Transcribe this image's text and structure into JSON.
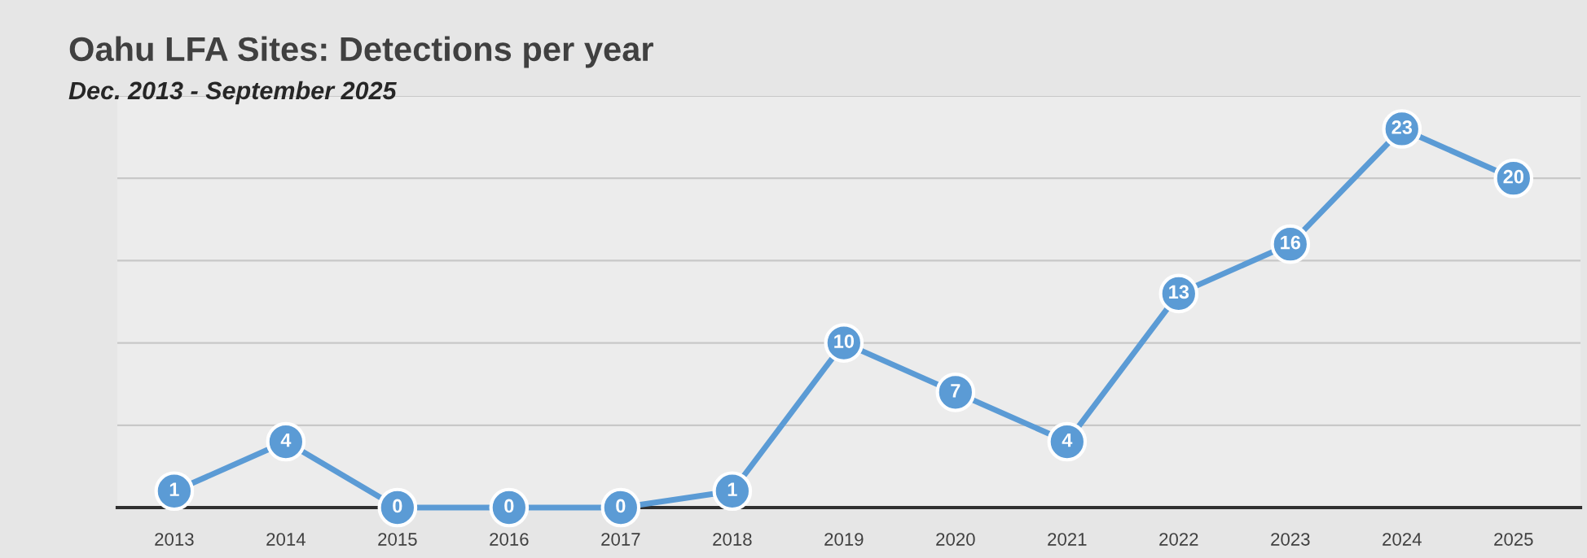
{
  "chart_data": {
    "type": "line",
    "title": "Oahu LFA Sites: Detections per year",
    "subtitle": "Dec. 2013 - September 2025",
    "categories": [
      "2013",
      "2014",
      "2015",
      "2016",
      "2017",
      "2018",
      "2019",
      "2020",
      "2021",
      "2022",
      "2023",
      "2024",
      "2025"
    ],
    "series": [
      {
        "color": "#5b9bd5",
        "values": [
          1,
          4,
          0,
          0,
          0,
          1,
          10,
          7,
          4,
          13,
          16,
          23,
          20
        ]
      }
    ],
    "ylim": [
      0,
      25
    ],
    "yticks": [
      {
        "value": 0,
        "label": null
      },
      {
        "value": 5,
        "label": null
      },
      {
        "value": 10,
        "label": null
      },
      {
        "value": 15,
        "label": null
      },
      {
        "value": 20,
        "label": null
      },
      {
        "value": 25,
        "label": null
      }
    ],
    "grid": "y",
    "tick_labels": "x",
    "data_labels": true,
    "marker": "circle",
    "line_style": "solid",
    "legend": false
  }
}
